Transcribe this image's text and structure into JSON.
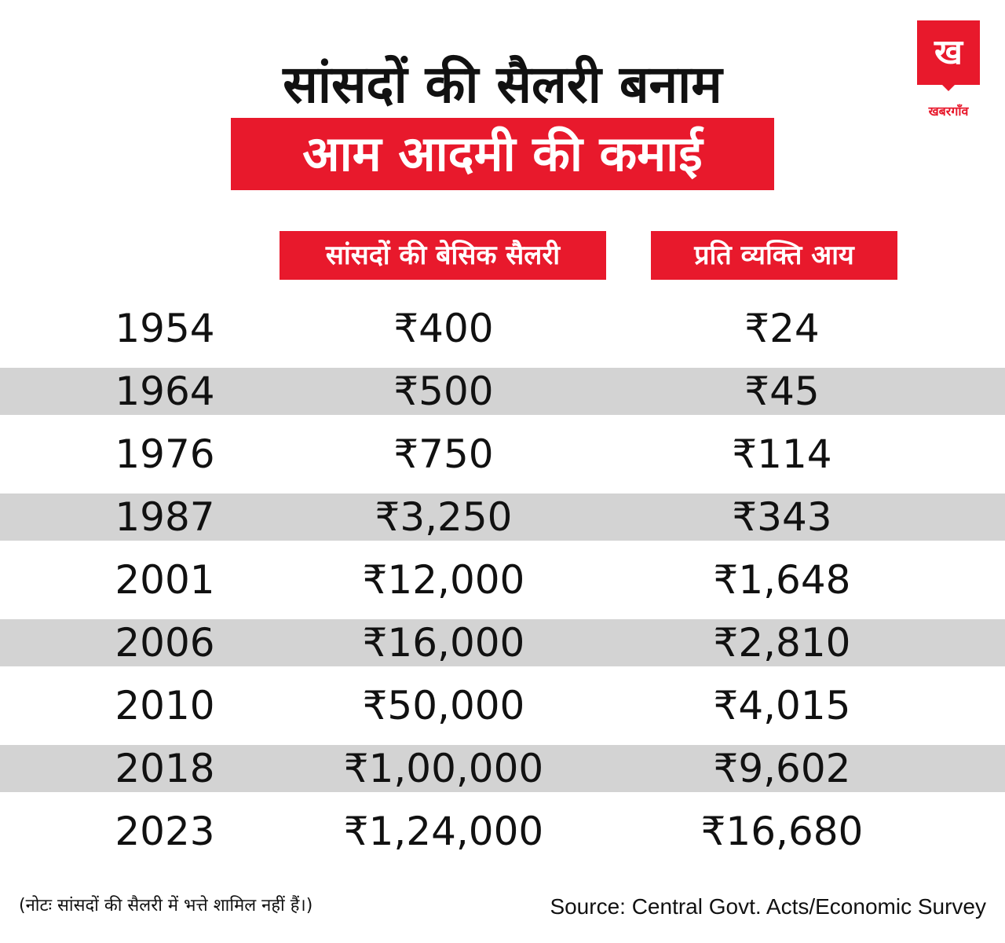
{
  "logo": {
    "mark": "ख",
    "name": "खबरगाँव"
  },
  "header": {
    "title_line1": "सांसदों की सैलरी बनाम",
    "title_line2": "आम आदमी की कमाई"
  },
  "colors": {
    "accent": "#e8192c",
    "row_shade": "#d3d3d3"
  },
  "chart_data": {
    "type": "table",
    "columns": [
      "",
      "सांसदों की बेसिक सैलरी",
      "प्रति व्यक्ति आय"
    ],
    "rows": [
      {
        "year": "1954",
        "mp_salary": "₹400",
        "per_capita": "₹24"
      },
      {
        "year": "1964",
        "mp_salary": "₹500",
        "per_capita": "₹45"
      },
      {
        "year": "1976",
        "mp_salary": "₹750",
        "per_capita": "₹114"
      },
      {
        "year": "1987",
        "mp_salary": "₹3,250",
        "per_capita": "₹343"
      },
      {
        "year": "2001",
        "mp_salary": "₹12,000",
        "per_capita": "₹1,648"
      },
      {
        "year": "2006",
        "mp_salary": "₹16,000",
        "per_capita": "₹2,810"
      },
      {
        "year": "2010",
        "mp_salary": "₹50,000",
        "per_capita": "₹4,015"
      },
      {
        "year": "2018",
        "mp_salary": "₹1,00,000",
        "per_capita": "₹9,602"
      },
      {
        "year": "2023",
        "mp_salary": "₹1,24,000",
        "per_capita": "₹16,680"
      }
    ]
  },
  "footer": {
    "note": "(नोटः सांसदों की सैलरी में भत्ते शामिल नहीं हैं।)",
    "source": "Source: Central Govt. Acts/Economic Survey"
  }
}
